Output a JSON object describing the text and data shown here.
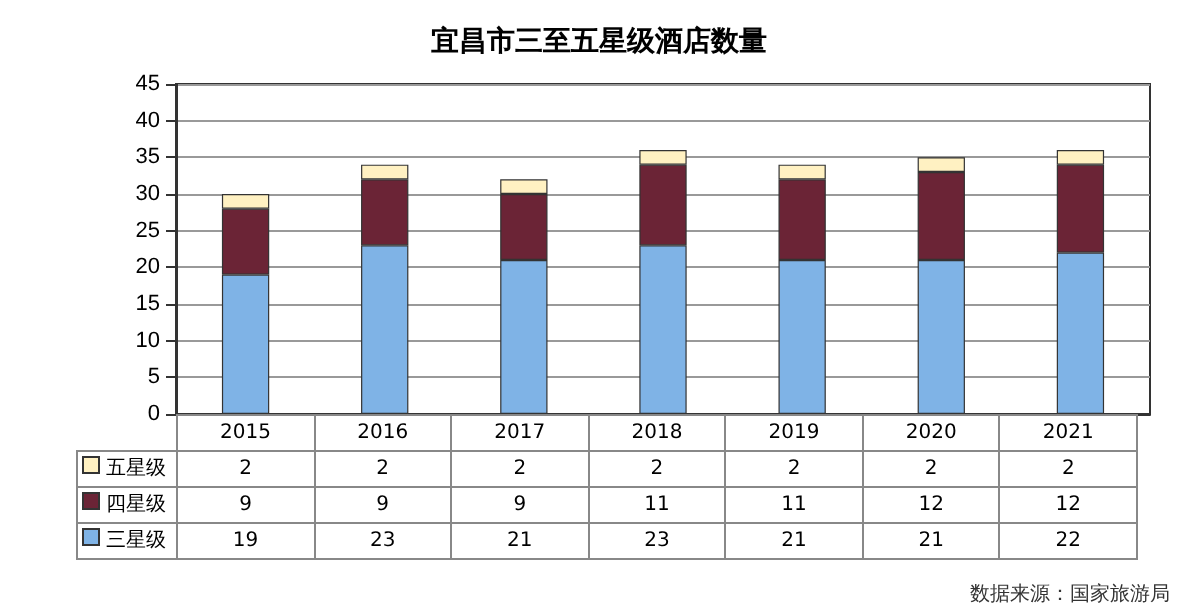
{
  "chart_data": {
    "type": "bar",
    "title": "宜昌市三至五星级酒店数量",
    "categories": [
      "2015",
      "2016",
      "2017",
      "2018",
      "2019",
      "2020",
      "2021"
    ],
    "series": [
      {
        "name": "三星级",
        "color": "#7fb3e6",
        "values": [
          19,
          23,
          21,
          23,
          21,
          21,
          22
        ]
      },
      {
        "name": "四星级",
        "color": "#6b2436",
        "values": [
          9,
          9,
          9,
          11,
          11,
          12,
          12
        ]
      },
      {
        "name": "五星级",
        "color": "#fff1c2",
        "values": [
          2,
          2,
          2,
          2,
          2,
          2,
          2
        ]
      }
    ],
    "stacked": true,
    "ylim": [
      0,
      45
    ],
    "yticks": [
      0,
      5,
      10,
      15,
      20,
      25,
      30,
      35,
      40,
      45
    ],
    "grid": "y",
    "legend": "bottom",
    "data_labels": true,
    "annotations": [
      "数据来源：国家旅游局"
    ]
  }
}
